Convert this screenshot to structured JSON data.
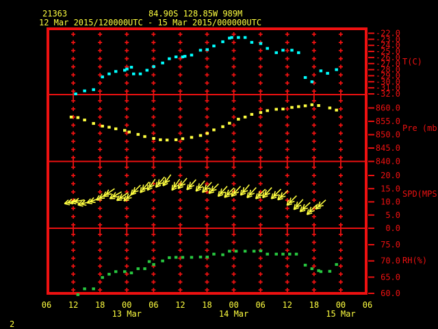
{
  "header": {
    "station_id": "21363",
    "location": "84.90S  128.85W   989M",
    "period": "12 Mar 2015/120000UTC - 15 Mar 2015/000000UTC"
  },
  "footer": {
    "page": "2"
  },
  "colors": {
    "background": "#000000",
    "axis_red": "#ee1111",
    "text_yellow": "#ffff40",
    "temp": "#00ffff",
    "pressure": "#ffff40",
    "wind": "#ffff40",
    "humidity": "#28c840"
  },
  "x_axis": {
    "range_hours": [
      0,
      72
    ],
    "tick_every_hours": 6,
    "tick_labels": [
      "06",
      "12",
      "18",
      "00",
      "06",
      "12",
      "18",
      "00",
      "06",
      "12",
      "18",
      "00",
      "06"
    ],
    "date_labels": [
      {
        "text": "13 Mar",
        "hour": 18
      },
      {
        "text": "14 Mar",
        "hour": 42
      },
      {
        "text": "15 Mar",
        "hour": 66
      }
    ]
  },
  "chart_data": [
    {
      "type": "scatter",
      "ylabel": "T(C)",
      "series_name": "temperature",
      "color_key": "temp",
      "ylim": [
        -32,
        -22
      ],
      "yticks": [
        -22,
        -23,
        -24,
        -25,
        -26,
        -27,
        -28,
        -29,
        -30,
        -31,
        -32
      ],
      "ytick_labels": [
        "-22.0",
        "-23.0",
        "-24.0",
        "-25.0",
        "-26.0",
        "-27.0",
        "-28.0",
        "-29.0",
        "-30.0",
        "-31.0",
        "-32.0"
      ],
      "points": [
        [
          6.5,
          -32.0
        ],
        [
          8.5,
          -31.5
        ],
        [
          10.5,
          -31.3
        ],
        [
          12.5,
          -29.2
        ],
        [
          14,
          -28.7
        ],
        [
          15.5,
          -28.3
        ],
        [
          17.5,
          -28.1
        ],
        [
          18,
          -27.9
        ],
        [
          19,
          -27.6
        ],
        [
          19.5,
          -28.7
        ],
        [
          21,
          -28.7
        ],
        [
          22.5,
          -28.1
        ],
        [
          24,
          -27.5
        ],
        [
          26,
          -26.9
        ],
        [
          27.5,
          -26.2
        ],
        [
          29,
          -25.9
        ],
        [
          30.5,
          -25.9
        ],
        [
          31,
          -25.8
        ],
        [
          32.5,
          -25.6
        ],
        [
          34.5,
          -24.8
        ],
        [
          36,
          -24.7
        ],
        [
          37.5,
          -24.1
        ],
        [
          39.5,
          -23.4
        ],
        [
          41,
          -22.8
        ],
        [
          41.5,
          -22.7
        ],
        [
          43,
          -22.7
        ],
        [
          44.5,
          -22.7
        ],
        [
          46,
          -23.5
        ],
        [
          48,
          -23.7
        ],
        [
          49.5,
          -24.5
        ],
        [
          51.5,
          -25.2
        ],
        [
          53,
          -24.8
        ],
        [
          55,
          -24.8
        ],
        [
          56.5,
          -25.2
        ],
        [
          58,
          -29.3
        ],
        [
          59.5,
          -30.0
        ],
        [
          61.5,
          -28.2
        ],
        [
          63,
          -28.6
        ],
        [
          65,
          -28.0
        ]
      ]
    },
    {
      "type": "scatter",
      "ylabel": "Pre (mb)",
      "series_name": "pressure",
      "color_key": "pressure",
      "ylim": [
        840,
        860
      ],
      "yticks": [
        860,
        855,
        850,
        845,
        840
      ],
      "ytick_labels": [
        "860.0",
        "855.0",
        "850.0",
        "845.0",
        "840.0"
      ],
      "points": [
        [
          5.5,
          856.6
        ],
        [
          7,
          856.4
        ],
        [
          8.5,
          855.5
        ],
        [
          10.5,
          854.2
        ],
        [
          12.5,
          853.2
        ],
        [
          14,
          852.8
        ],
        [
          15.5,
          852.2
        ],
        [
          17.5,
          851.6
        ],
        [
          18.5,
          851.0
        ],
        [
          20.5,
          850.1
        ],
        [
          22,
          849.3
        ],
        [
          24,
          848.6
        ],
        [
          25.5,
          848.1
        ],
        [
          27,
          848.0
        ],
        [
          29,
          848.1
        ],
        [
          30.5,
          848.5
        ],
        [
          32.5,
          849.0
        ],
        [
          34.5,
          849.7
        ],
        [
          36,
          850.5
        ],
        [
          37.5,
          851.8
        ],
        [
          39.5,
          853.0
        ],
        [
          41,
          854.3
        ],
        [
          43,
          855.8
        ],
        [
          44.5,
          856.6
        ],
        [
          46,
          857.6
        ],
        [
          48,
          858.3
        ],
        [
          49.5,
          859.0
        ],
        [
          51.5,
          859.5
        ],
        [
          53,
          859.6
        ],
        [
          55,
          860.2
        ],
        [
          56.5,
          860.5
        ],
        [
          58,
          860.8
        ],
        [
          59.5,
          861.2
        ],
        [
          61,
          860.9
        ],
        [
          63.5,
          860.0
        ],
        [
          65,
          859.2
        ]
      ]
    },
    {
      "type": "wind",
      "ylabel": "SPD(MPS)",
      "series_name": "wind-speed",
      "color_key": "wind",
      "ylim": [
        0,
        20
      ],
      "yticks": [
        20,
        15,
        10,
        5,
        0
      ],
      "ytick_labels": [
        "20.0",
        "15.0",
        "10.0",
        "5.0",
        "0.0"
      ],
      "points": [
        [
          5.5,
          10.0,
          165
        ],
        [
          7,
          10.3,
          170
        ],
        [
          8.5,
          9.5,
          165
        ],
        [
          10.5,
          10.5,
          160
        ],
        [
          12.5,
          12.0,
          150
        ],
        [
          14,
          13.5,
          145
        ],
        [
          15.5,
          12.5,
          150
        ],
        [
          17,
          12.0,
          145
        ],
        [
          18.5,
          12.0,
          140
        ],
        [
          20,
          14.5,
          135
        ],
        [
          22,
          15.5,
          130
        ],
        [
          23.5,
          16.5,
          125
        ],
        [
          25.5,
          17.5,
          130
        ],
        [
          27,
          18.2,
          125
        ],
        [
          29,
          16.5,
          125
        ],
        [
          30.5,
          17.0,
          130
        ],
        [
          32.5,
          16.5,
          132
        ],
        [
          34.5,
          16.0,
          130
        ],
        [
          36,
          15.5,
          132
        ],
        [
          37.5,
          15.0,
          135
        ],
        [
          39.5,
          14.0,
          132
        ],
        [
          41,
          13.5,
          135
        ],
        [
          42.5,
          14.0,
          132
        ],
        [
          44.5,
          14.5,
          130
        ],
        [
          46,
          13.5,
          132
        ],
        [
          48,
          13.0,
          135
        ],
        [
          49.5,
          13.5,
          132
        ],
        [
          51.5,
          13.0,
          135
        ],
        [
          53,
          12.5,
          138
        ],
        [
          55,
          10.5,
          135
        ],
        [
          56.5,
          9.0,
          132
        ],
        [
          58,
          8.0,
          138
        ],
        [
          59.5,
          7.0,
          135
        ],
        [
          61.5,
          9.0,
          138
        ]
      ]
    },
    {
      "type": "scatter",
      "ylabel": "RH(%)",
      "series_name": "relative-humidity",
      "color_key": "humidity",
      "ylim": [
        60,
        75
      ],
      "yticks": [
        75,
        70,
        65,
        60
      ],
      "ytick_labels": [
        "75.0",
        "70.0",
        "65.0",
        "60.0"
      ],
      "points": [
        [
          7,
          59.6
        ],
        [
          8.5,
          61.4
        ],
        [
          10.5,
          61.4
        ],
        [
          12.5,
          64.9
        ],
        [
          14,
          65.9
        ],
        [
          15.5,
          66.7
        ],
        [
          17.5,
          66.7
        ],
        [
          19,
          66.3
        ],
        [
          20.5,
          67.6
        ],
        [
          22,
          67.6
        ],
        [
          23,
          69.8
        ],
        [
          24,
          68.9
        ],
        [
          26,
          70.0
        ],
        [
          27.5,
          71.0
        ],
        [
          29,
          71.1
        ],
        [
          30.5,
          71.1
        ],
        [
          32.5,
          71.1
        ],
        [
          34.5,
          71.2
        ],
        [
          36,
          71.2
        ],
        [
          37.5,
          72.1
        ],
        [
          39.5,
          71.9
        ],
        [
          41,
          73.0
        ],
        [
          42.5,
          73.0
        ],
        [
          44.5,
          73.0
        ],
        [
          46.5,
          73.0
        ],
        [
          48,
          73.1
        ],
        [
          49.5,
          72.1
        ],
        [
          51.5,
          72.1
        ],
        [
          53,
          72.1
        ],
        [
          54.5,
          72.1
        ],
        [
          56,
          72.1
        ],
        [
          58,
          68.7
        ],
        [
          59.5,
          67.6
        ],
        [
          61,
          67.0
        ],
        [
          61.5,
          66.7
        ],
        [
          63.5,
          66.8
        ],
        [
          65,
          68.9
        ]
      ]
    }
  ]
}
